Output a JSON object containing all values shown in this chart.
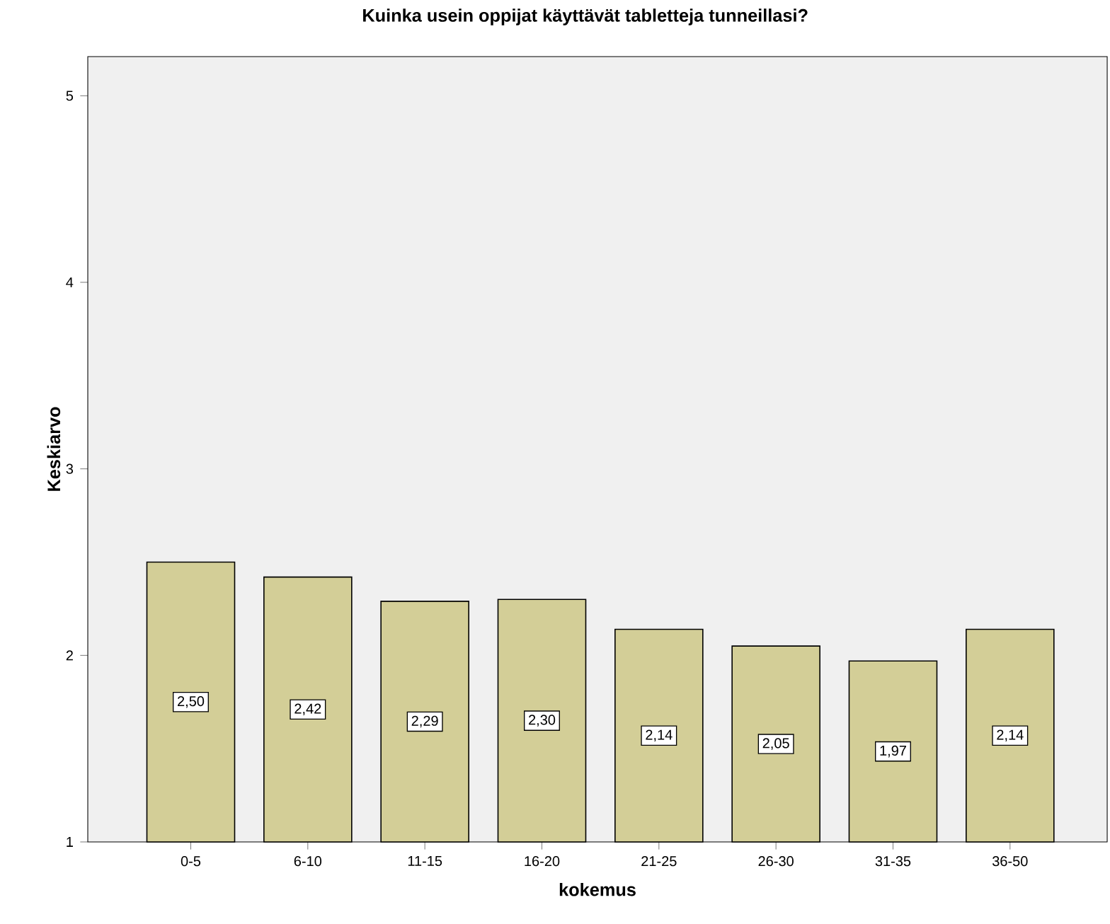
{
  "chart_data": {
    "type": "bar",
    "title": "Kuinka usein oppijat käyttävät tabletteja tunneillasi?",
    "xlabel": "kokemus",
    "ylabel": "Keskiarvo",
    "categories": [
      "0-5",
      "6-10",
      "11-15",
      "16-20",
      "21-25",
      "26-30",
      "31-35",
      "36-50"
    ],
    "values": [
      2.5,
      2.42,
      2.29,
      2.3,
      2.14,
      2.05,
      1.97,
      2.14
    ],
    "value_labels": [
      "2,50",
      "2,42",
      "2,29",
      "2,30",
      "2,14",
      "2,05",
      "1,97",
      "2,14"
    ],
    "color": "#d3ce97",
    "ylim": [
      1,
      5.21
    ],
    "yticks": [
      1,
      2,
      3,
      4,
      5
    ],
    "grid": false
  }
}
